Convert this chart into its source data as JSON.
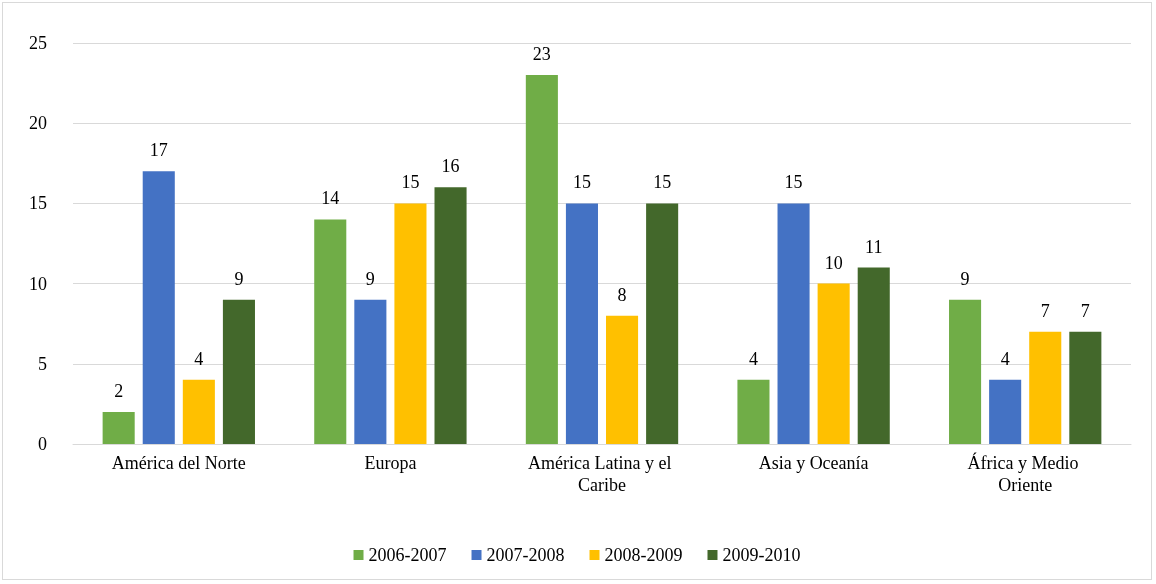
{
  "chart_data": {
    "type": "bar",
    "categories": [
      "América del Norte",
      "Europa",
      "América Latina y el Caribe",
      "Asia y Oceanía",
      "África y Medio Oriente"
    ],
    "series": [
      {
        "name": "2006-2007",
        "color": "#70ad47",
        "values": [
          2,
          14,
          23,
          4,
          9
        ]
      },
      {
        "name": "2007-2008",
        "color": "#4472c4",
        "values": [
          17,
          9,
          15,
          15,
          4
        ]
      },
      {
        "name": "2008-2009",
        "color": "#ffc000",
        "values": [
          4,
          15,
          8,
          10,
          7
        ]
      },
      {
        "name": "2009-2010",
        "color": "#43682b",
        "values": [
          9,
          16,
          15,
          11,
          7
        ]
      }
    ],
    "ylim": [
      0,
      25
    ],
    "yticks": [
      0,
      5,
      10,
      15,
      20,
      25
    ],
    "grid": "y",
    "legend": "bottom",
    "data_labels": true
  }
}
